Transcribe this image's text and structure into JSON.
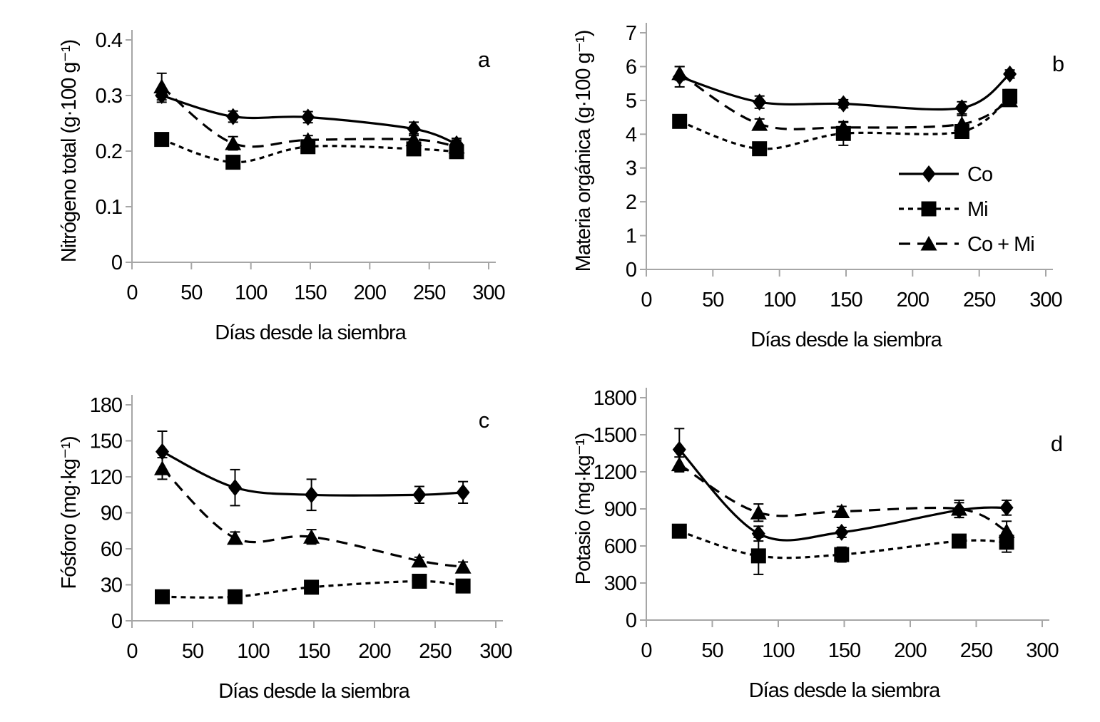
{
  "figure": {
    "background_color": "#ffffff",
    "axis_color": "#a6a6a6",
    "data_color": "#000000",
    "x_label": "Días desde la siembra",
    "legend": {
      "entries": [
        "Co",
        "Mi",
        "Co + Mi"
      ],
      "location": "right-center-of-panel-b"
    }
  },
  "chart_data": [
    {
      "panel": "a",
      "type": "line",
      "title": "",
      "xlabel": "Días desde la siembra",
      "ylabel": "Nitrógeno total (g·100 g⁻¹)",
      "xlim": [
        0,
        300
      ],
      "ylim": [
        0,
        0.4
      ],
      "xticks": [
        "0",
        "50",
        "100",
        "150",
        "200",
        "250",
        "300"
      ],
      "yticks": [
        "0",
        "0.1",
        "0.2",
        "0.3",
        "0.4"
      ],
      "grid": false,
      "x": [
        25,
        85,
        148,
        237,
        273
      ],
      "series": [
        {
          "name": "Co",
          "marker": "diamond",
          "line_style": "solid",
          "color": "#000000",
          "values": [
            0.3,
            0.262,
            0.261,
            0.24,
            0.213
          ],
          "errors": [
            0.012,
            0.01,
            0.01,
            0.012,
            0.01
          ]
        },
        {
          "name": "Mi",
          "marker": "square",
          "line_style": "dotted",
          "color": "#000000",
          "values": [
            0.221,
            0.18,
            0.208,
            0.204,
            0.199
          ],
          "errors": [
            0.006,
            0.006,
            0.008,
            0.008,
            0.008
          ]
        },
        {
          "name": "Co + Mi",
          "marker": "triangle",
          "line_style": "dashed",
          "color": "#000000",
          "values": [
            0.316,
            0.214,
            0.22,
            0.221,
            0.208
          ],
          "errors": [
            0.024,
            0.012,
            0.008,
            0.01,
            0.012
          ]
        }
      ],
      "legend": false
    },
    {
      "panel": "b",
      "type": "line",
      "title": "",
      "xlabel": "Días desde la siembra",
      "ylabel": "Materia orgánica (g·100 g⁻¹)",
      "xlim": [
        0,
        300
      ],
      "ylim": [
        0,
        7
      ],
      "xticks": [
        "0",
        "50",
        "100",
        "150",
        "200",
        "250",
        "300"
      ],
      "yticks": [
        "0",
        "1",
        "2",
        "3",
        "4",
        "5",
        "6",
        "7"
      ],
      "grid": false,
      "x": [
        25,
        85,
        148,
        237,
        273
      ],
      "series": [
        {
          "name": "Co",
          "marker": "diamond",
          "line_style": "solid",
          "color": "#000000",
          "values": [
            5.7,
            4.95,
            4.9,
            4.78,
            5.78
          ],
          "errors": [
            0.3,
            0.18,
            0.12,
            0.18,
            0.12
          ]
        },
        {
          "name": "Mi",
          "marker": "square",
          "line_style": "dotted",
          "color": "#000000",
          "values": [
            4.38,
            3.57,
            4.02,
            4.08,
            5.12
          ],
          "errors": [
            0.18,
            0.15,
            0.35,
            0.15,
            0.2
          ]
        },
        {
          "name": "Co + Mi",
          "marker": "triangle",
          "line_style": "dashed",
          "color": "#000000",
          "values": [
            5.8,
            4.3,
            4.2,
            4.3,
            5.0
          ],
          "errors": [
            0.2,
            0.15,
            0.15,
            0.25,
            0.15
          ]
        }
      ],
      "legend": true
    },
    {
      "panel": "c",
      "type": "line",
      "title": "",
      "xlabel": "Días desde la siembra",
      "ylabel": "Fósforo (mg·kg⁻¹)",
      "xlim": [
        0,
        300
      ],
      "ylim": [
        0,
        180
      ],
      "xticks": [
        "0",
        "50",
        "100",
        "150",
        "200",
        "250",
        "300"
      ],
      "yticks": [
        "0",
        "30",
        "60",
        "90",
        "120",
        "150",
        "180"
      ],
      "grid": false,
      "x": [
        25,
        85,
        148,
        237,
        273
      ],
      "series": [
        {
          "name": "Co",
          "marker": "diamond",
          "line_style": "solid",
          "color": "#000000",
          "values": [
            141,
            111,
            105,
            105,
            107
          ],
          "errors": [
            17,
            15,
            13,
            7,
            9
          ]
        },
        {
          "name": "Mi",
          "marker": "square",
          "line_style": "dotted",
          "color": "#000000",
          "values": [
            20,
            20,
            28,
            33,
            29
          ],
          "errors": [
            3,
            3,
            4,
            4,
            5
          ]
        },
        {
          "name": "Co + Mi",
          "marker": "triangle",
          "line_style": "dashed",
          "color": "#000000",
          "values": [
            127,
            69,
            70,
            50,
            45
          ],
          "errors": [
            9,
            5,
            6,
            3,
            4
          ]
        }
      ],
      "legend": false
    },
    {
      "panel": "d",
      "type": "line",
      "title": "",
      "xlabel": "Días desde la siembra",
      "ylabel": "Potasio (mg·kg⁻¹)",
      "xlim": [
        0,
        300
      ],
      "ylim": [
        0,
        1800
      ],
      "xticks": [
        "0",
        "50",
        "100",
        "150",
        "200",
        "250",
        "300"
      ],
      "yticks": [
        "0",
        "300",
        "600",
        "900",
        "1200",
        "1500",
        "1800"
      ],
      "grid": false,
      "x": [
        25,
        85,
        148,
        237,
        273
      ],
      "series": [
        {
          "name": "Co",
          "marker": "diamond",
          "line_style": "solid",
          "color": "#000000",
          "values": [
            1380,
            700,
            710,
            890,
            910
          ],
          "errors": [
            170,
            60,
            40,
            60,
            60
          ]
        },
        {
          "name": "Mi",
          "marker": "square",
          "line_style": "dotted",
          "color": "#000000",
          "values": [
            720,
            520,
            530,
            640,
            630
          ],
          "errors": [
            40,
            150,
            60,
            40,
            80
          ]
        },
        {
          "name": "Co + Mi",
          "marker": "triangle",
          "line_style": "dashed",
          "color": "#000000",
          "values": [
            1260,
            870,
            880,
            900,
            720
          ],
          "errors": [
            60,
            70,
            40,
            70,
            80
          ]
        }
      ],
      "legend": false
    }
  ]
}
